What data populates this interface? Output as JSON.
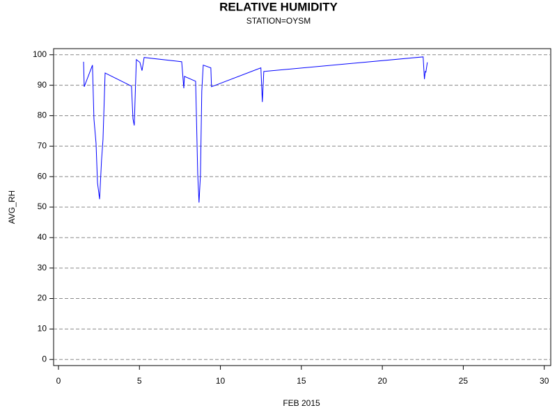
{
  "chart_data": {
    "type": "line",
    "title": "RELATIVE HUMIDITY",
    "subtitle": "STATION=OYSM",
    "x_label": "FEB 2015",
    "y_label": "AVG_RH",
    "x": [
      1.55,
      1.59,
      2.1,
      2.19,
      2.32,
      2.41,
      2.54,
      2.66,
      2.75,
      2.88,
      4.51,
      4.6,
      4.68,
      4.81,
      5.03,
      5.16,
      5.29,
      7.61,
      7.74,
      7.78,
      8.47,
      8.6,
      8.68,
      8.77,
      8.85,
      8.94,
      9.41,
      9.45,
      12.5,
      12.59,
      12.68,
      22.52,
      22.6,
      22.65,
      22.69,
      22.78
    ],
    "series": [
      {
        "name": "AVG_RH",
        "color": "#0000ff",
        "values": [
          97.7,
          89.5,
          96.6,
          79,
          71,
          58,
          52.6,
          65.4,
          72.2,
          94,
          89.7,
          79,
          76.8,
          98.4,
          97.5,
          94.8,
          99.1,
          97.7,
          89,
          92.9,
          91.3,
          60.8,
          51.5,
          60.8,
          88,
          96.6,
          95.7,
          89.5,
          95.7,
          84.5,
          94.5,
          99.3,
          92,
          94.5,
          94.3,
          97.5
        ]
      }
    ],
    "xlim": [
      -0.3,
      30.4
    ],
    "xticks": [
      0,
      5,
      10,
      15,
      20,
      25,
      30
    ],
    "ylim": [
      -2,
      102
    ],
    "yticks": [
      0,
      10,
      20,
      30,
      40,
      50,
      60,
      70,
      80,
      90,
      100
    ],
    "grid": true
  }
}
